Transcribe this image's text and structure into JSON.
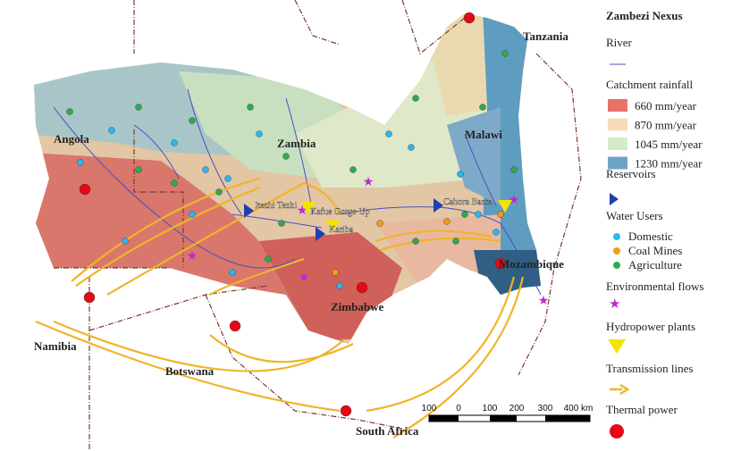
{
  "legend": {
    "title": "Zambezi Nexus",
    "river": "River",
    "rainfall": {
      "heading": "Catchment rainfall",
      "items": [
        "660 mm/year",
        "870 mm/year",
        "1045 mm/year",
        "1230 mm/year"
      ]
    },
    "reservoirs": "Reservoirs",
    "water_users": {
      "heading": "Water Users",
      "items": [
        "Domestic",
        "Coal Mines",
        "Agriculture"
      ]
    },
    "environmental_flows": "Environmental flows",
    "hydropower": "Hydropower plants",
    "transmission": "Transmission lines",
    "thermal": "Thermal power"
  },
  "countries": [
    "Angola",
    "Zambia",
    "Malawi",
    "Tanzania",
    "Mozambique",
    "Zimbabwe",
    "Namibia",
    "Botswana",
    "South Africa"
  ],
  "places": [
    "Itezhi Tezhi",
    "Kafue Gorge Up",
    "Kariba",
    "Cahora Bassa"
  ],
  "scale": {
    "labels": [
      "100",
      "0",
      "100",
      "200",
      "300",
      "400 km"
    ]
  }
}
